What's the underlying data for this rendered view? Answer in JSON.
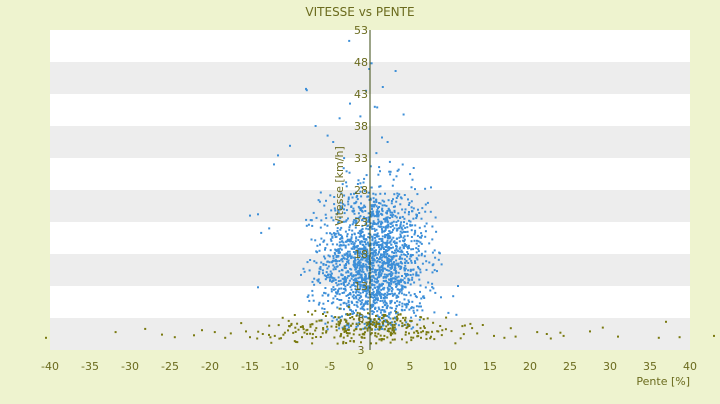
{
  "chart_data": {
    "type": "scatter",
    "title": "VITESSE vs PENTE",
    "xlabel": "Pente [%]",
    "ylabel": "Vitesse [km/h]",
    "xlim": [
      -40,
      40
    ],
    "ylim": [
      3,
      53
    ],
    "x_ticks": [
      "-40",
      "-35",
      "-30",
      "-25",
      "-20",
      "-15",
      "-10",
      "-5",
      "0",
      "5",
      "10",
      "15",
      "20",
      "25",
      "30",
      "35",
      "40"
    ],
    "y_ticks": [
      "3",
      "8",
      "13",
      "18",
      "23",
      "28",
      "33",
      "38",
      "43",
      "48",
      "53"
    ],
    "grid": true,
    "legend": "none",
    "colors": {
      "background": "#eef3cf",
      "band": "#ededed",
      "plot": "#ffffff",
      "axis_text": "#6b6b1e",
      "zero_line": "#3a4a10"
    },
    "series": [
      {
        "color": "#3d8fd8",
        "points": [
          [
            -8.0,
            43.8
          ],
          [
            -7.9,
            43.6
          ],
          [
            -2.6,
            51.3
          ],
          [
            0.2,
            47.8
          ],
          [
            -0.1,
            46.9
          ],
          [
            3.2,
            46.6
          ],
          [
            0.6,
            41.0
          ],
          [
            0.9,
            40.9
          ],
          [
            4.2,
            39.8
          ],
          [
            -3.8,
            39.2
          ],
          [
            -10.0,
            34.9
          ],
          [
            -11.5,
            33.4
          ],
          [
            -12.0,
            32.0
          ],
          [
            -14.0,
            24.2
          ],
          [
            -15.0,
            24.0
          ],
          [
            -12.6,
            22.0
          ],
          [
            -13.6,
            21.3
          ],
          [
            -14.0,
            12.8
          ],
          [
            7.6,
            24.6
          ],
          [
            8.2,
            23.7
          ],
          [
            7.8,
            22.3
          ],
          [
            11.0,
            13.0
          ],
          [
            10.4,
            11.4
          ],
          [
            9.8,
            8.8
          ],
          [
            10.8,
            8.5
          ],
          [
            -6.8,
            38.0
          ],
          [
            -5.3,
            36.5
          ],
          [
            -4.6,
            35.5
          ],
          [
            -1.2,
            39.5
          ],
          [
            1.5,
            36.2
          ],
          [
            2.2,
            35.5
          ],
          [
            -2.5,
            41.5
          ],
          [
            -0.5,
            43.5
          ],
          [
            1.6,
            44.1
          ]
        ],
        "cluster": {
          "center": [
            0.5,
            16.5
          ],
          "spread": [
            3.3,
            6.0
          ],
          "count": 1900,
          "x_range": [
            -9,
            9
          ],
          "y_range": [
            6,
            37
          ]
        }
      },
      {
        "color": "#7a7a10",
        "points": [
          [
            -40.5,
            4.9
          ],
          [
            -31.8,
            5.8
          ],
          [
            -28.1,
            6.3
          ],
          [
            -26.0,
            5.4
          ],
          [
            -24.4,
            5.0
          ],
          [
            -22.0,
            5.3
          ],
          [
            -21.0,
            6.1
          ],
          [
            -19.4,
            5.8
          ],
          [
            -18.1,
            4.9
          ],
          [
            -17.4,
            5.6
          ],
          [
            -16.1,
            7.2
          ],
          [
            -15.5,
            5.9
          ],
          [
            -15.0,
            5.0
          ],
          [
            -14.1,
            4.8
          ],
          [
            -13.4,
            5.5
          ],
          [
            -12.6,
            6.8
          ],
          [
            -11.9,
            5.2
          ],
          [
            13.4,
            5.6
          ],
          [
            14.1,
            6.9
          ],
          [
            15.5,
            5.2
          ],
          [
            16.8,
            4.9
          ],
          [
            17.6,
            6.4
          ],
          [
            18.2,
            5.1
          ],
          [
            20.9,
            5.8
          ],
          [
            22.1,
            5.5
          ],
          [
            22.6,
            4.8
          ],
          [
            23.8,
            5.7
          ],
          [
            24.2,
            5.2
          ],
          [
            27.5,
            5.9
          ],
          [
            29.1,
            6.5
          ],
          [
            31.0,
            5.1
          ],
          [
            36.1,
            4.9
          ],
          [
            37.0,
            7.4
          ],
          [
            38.7,
            5.0
          ],
          [
            43.0,
            5.2
          ]
        ],
        "cluster": {
          "center": [
            0,
            6.4
          ],
          "spread": [
            6.0,
            1.4
          ],
          "count": 300,
          "x_range": [
            -14,
            14
          ],
          "y_range": [
            4,
            10
          ]
        }
      }
    ]
  }
}
